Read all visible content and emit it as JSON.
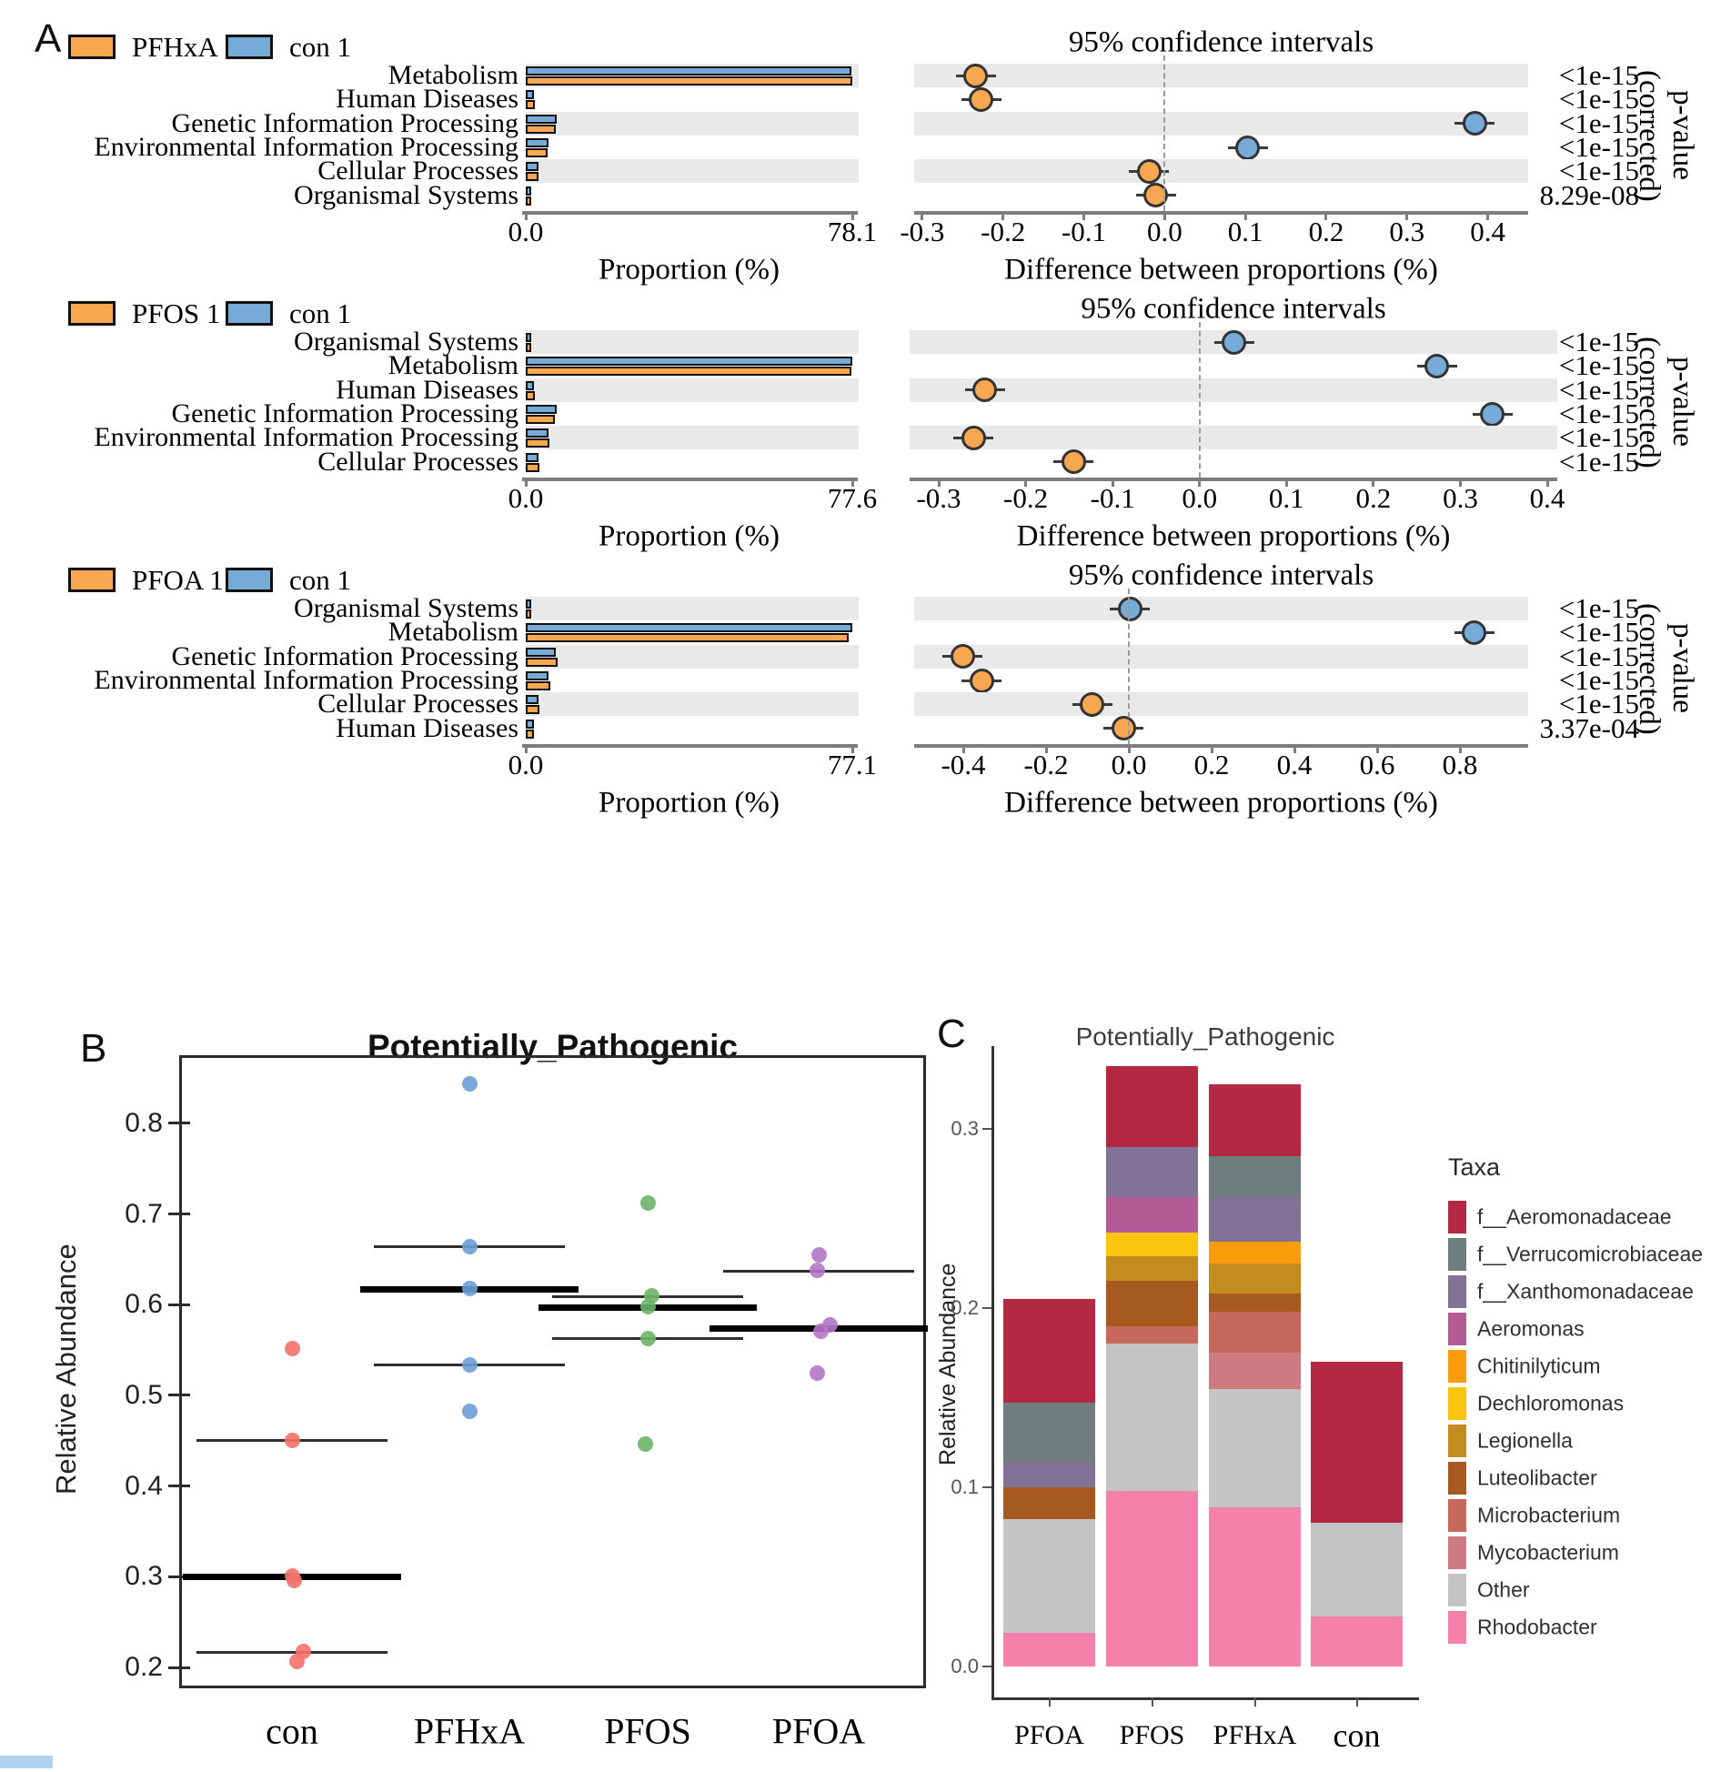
{
  "panel_labels": {
    "a": "A",
    "b": "B",
    "c": "C"
  },
  "stamp_colors": {
    "group1_fill": "#F9A750",
    "group2_fill": "#76AAD7",
    "band": "#E9E9E9",
    "axis": "#7d7d7d",
    "marker_border": "#333333"
  },
  "chart_data": [
    {
      "type": "stamp_extended_error_bar",
      "comparison": "PFHxA 1 vs con 1",
      "legend": {
        "group1": "PFHxA 1",
        "group2": "con 1"
      },
      "ci_title": "95% confidence intervals",
      "prop_xlabel": "Proportion (%)",
      "diff_xlabel": "Difference between proportions (%)",
      "right_ylabel": "p-value (corrected)",
      "prop_axis": {
        "max": 78.1,
        "tick_labels": [
          "0.0",
          "78.1"
        ]
      },
      "diff_axis": {
        "min": -0.31,
        "max": 0.45,
        "ticks": [
          -0.3,
          -0.2,
          -0.1,
          0.0,
          0.1,
          0.2,
          0.3,
          0.4
        ]
      },
      "rows": [
        {
          "category": "Metabolism",
          "group1_prop": 78.1,
          "group2_prop": 77.87,
          "diff": -0.234,
          "enriched": "group1",
          "p_value": "<1e-15"
        },
        {
          "category": "Human Diseases",
          "group1_prop": 2.08,
          "group2_prop": 1.85,
          "diff": -0.227,
          "enriched": "group1",
          "p_value": "<1e-15"
        },
        {
          "category": "Genetic Information Processing",
          "group1_prop": 7.11,
          "group2_prop": 7.49,
          "diff": 0.384,
          "enriched": "group2",
          "p_value": "<1e-15"
        },
        {
          "category": "Environmental Information Processing",
          "group1_prop": 5.32,
          "group2_prop": 5.42,
          "diff": 0.103,
          "enriched": "group2",
          "p_value": "<1e-15"
        },
        {
          "category": "Cellular Processes",
          "group1_prop": 3.09,
          "group2_prop": 3.07,
          "diff": -0.019,
          "enriched": "group1",
          "p_value": "<1e-15"
        },
        {
          "category": "Organismal Systems",
          "group1_prop": 1.29,
          "group2_prop": 1.28,
          "diff": -0.011,
          "enriched": "group1",
          "p_value": "8.29e-08"
        }
      ]
    },
    {
      "type": "stamp_extended_error_bar",
      "comparison": "PFOS 1 vs con 1",
      "legend": {
        "group1": "PFOS 1",
        "group2": "con 1"
      },
      "ci_title": "95% confidence intervals",
      "prop_xlabel": "Proportion (%)",
      "diff_xlabel": "Difference between proportions (%)",
      "right_ylabel": "p-value (corrected)",
      "prop_axis": {
        "max": 77.6,
        "tick_labels": [
          "0.0",
          "77.6"
        ]
      },
      "diff_axis": {
        "min": -0.3335,
        "max": 0.4115,
        "ticks": [
          -0.3,
          -0.2,
          -0.1,
          0.0,
          0.1,
          0.2,
          0.3,
          0.4
        ]
      },
      "rows": [
        {
          "category": "Organismal Systems",
          "group1_prop": 1.27,
          "group2_prop": 1.31,
          "diff": 0.04,
          "enriched": "group2",
          "p_value": "<1e-15"
        },
        {
          "category": "Metabolism",
          "group1_prop": 77.33,
          "group2_prop": 77.6,
          "diff": 0.273,
          "enriched": "group2",
          "p_value": "<1e-15"
        },
        {
          "category": "Human Diseases",
          "group1_prop": 2.2,
          "group2_prop": 1.95,
          "diff": -0.247,
          "enriched": "group1",
          "p_value": "<1e-15"
        },
        {
          "category": "Genetic Information Processing",
          "group1_prop": 6.96,
          "group2_prop": 7.3,
          "diff": 0.337,
          "enriched": "group2",
          "p_value": "<1e-15"
        },
        {
          "category": "Environmental Information Processing",
          "group1_prop": 5.56,
          "group2_prop": 5.3,
          "diff": -0.26,
          "enriched": "group1",
          "p_value": "<1e-15"
        },
        {
          "category": "Cellular Processes",
          "group1_prop": 3.2,
          "group2_prop": 3.06,
          "diff": -0.145,
          "enriched": "group1",
          "p_value": "<1e-15"
        }
      ]
    },
    {
      "type": "stamp_extended_error_bar",
      "comparison": "PFOA 1 vs con 1",
      "legend": {
        "group1": "PFOA 1",
        "group2": "con 1"
      },
      "ci_title": "95% confidence intervals",
      "prop_xlabel": "Proportion (%)",
      "diff_xlabel": "Difference between proportions (%)",
      "right_ylabel": "p-value (corrected)",
      "prop_axis": {
        "max": 77.1,
        "tick_labels": [
          "0.0",
          "77.1"
        ]
      },
      "diff_axis": {
        "min": -0.5187,
        "max": 0.9648,
        "ticks": [
          -0.4,
          -0.2,
          0.0,
          0.2,
          0.4,
          0.6,
          0.8
        ]
      },
      "rows": [
        {
          "category": "Organismal Systems",
          "group1_prop": 1.3,
          "group2_prop": 1.3,
          "diff": 0.003,
          "enriched": "group2",
          "p_value": "<1e-15"
        },
        {
          "category": "Metabolism",
          "group1_prop": 76.27,
          "group2_prop": 77.1,
          "diff": 0.835,
          "enriched": "group2",
          "p_value": "<1e-15"
        },
        {
          "category": "Genetic Information Processing",
          "group1_prop": 7.5,
          "group2_prop": 7.1,
          "diff": -0.402,
          "enriched": "group1",
          "p_value": "<1e-15"
        },
        {
          "category": "Environmental Information Processing",
          "group1_prop": 5.75,
          "group2_prop": 5.4,
          "diff": -0.355,
          "enriched": "group1",
          "p_value": "<1e-15"
        },
        {
          "category": "Cellular Processes",
          "group1_prop": 3.19,
          "group2_prop": 3.1,
          "diff": -0.088,
          "enriched": "group1",
          "p_value": "<1e-15"
        },
        {
          "category": "Human Diseases",
          "group1_prop": 2.0,
          "group2_prop": 1.99,
          "diff": -0.013,
          "enriched": "group1",
          "p_value": "3.37e-04"
        }
      ]
    },
    {
      "type": "scatter",
      "title": "Potentially_Pathogenic",
      "ylabel": "Relative Abundance",
      "ylim": [
        0.17,
        0.87
      ],
      "yticks": [
        0.2,
        0.3,
        0.4,
        0.5,
        0.6,
        0.7,
        0.8
      ],
      "groups": [
        {
          "name": "con",
          "color": "#F4726C",
          "points": [
            0.552,
            0.45,
            0.301,
            0.296,
            0.218,
            0.207
          ],
          "jitter": [
            0,
            0,
            0,
            2,
            12,
            5
          ],
          "mean": 0.3,
          "upper": 0.45,
          "lower": 0.217
        },
        {
          "name": "PFHxA",
          "color": "#6D9FD6",
          "points": [
            0.843,
            0.664,
            0.618,
            0.534,
            0.482
          ],
          "jitter": [
            0,
            0,
            0,
            0,
            0
          ],
          "mean": 0.617,
          "upper": 0.664,
          "lower": 0.534
        },
        {
          "name": "PFOS",
          "color": "#6CB468",
          "points": [
            0.712,
            0.61,
            0.598,
            0.563,
            0.446
          ],
          "jitter": [
            0,
            4,
            0,
            0,
            -3
          ],
          "mean": 0.597,
          "upper": 0.609,
          "lower": 0.563
        },
        {
          "name": "PFOA",
          "color": "#B475C5",
          "points": [
            0.655,
            0.638,
            0.578,
            0.571,
            0.524
          ],
          "jitter": [
            0,
            -2,
            12,
            2,
            -2
          ],
          "mean": 0.574,
          "upper": 0.637,
          "lower": null
        }
      ]
    },
    {
      "type": "bar",
      "subtype": "stacked",
      "title": "Potentially_Pathogenic",
      "ylabel": "Relative Abundance",
      "legend_title": "Taxa",
      "yticks": [
        0.0,
        0.1,
        0.2,
        0.3
      ],
      "ylim": [
        0,
        0.345
      ],
      "categories": [
        "PFOA",
        "PFOS",
        "PFHxA",
        "con"
      ],
      "taxa": [
        {
          "name": "f__Aeromonadaceae",
          "color": "#B52841"
        },
        {
          "name": "f__Verrucomicrobiaceae",
          "color": "#6F7D7F"
        },
        {
          "name": "f__Xanthomonadaceae",
          "color": "#827295"
        },
        {
          "name": "Aeromonas",
          "color": "#B25B94"
        },
        {
          "name": "Chitinilyticum",
          "color": "#FA9C0B"
        },
        {
          "name": "Dechloromonas",
          "color": "#FBC40F"
        },
        {
          "name": "Legionella",
          "color": "#C28D1E"
        },
        {
          "name": "Luteolibacter",
          "color": "#A65A20"
        },
        {
          "name": "Microbacterium",
          "color": "#C7685C"
        },
        {
          "name": "Mycobacterium",
          "color": "#CD7B80"
        },
        {
          "name": "Other",
          "color": "#C4C4C4"
        },
        {
          "name": "Rhodobacter",
          "color": "#F580A9"
        }
      ],
      "stacks": {
        "PFOA": [
          {
            "taxon": "Rhodobacter",
            "value": 0.019
          },
          {
            "taxon": "Other",
            "value": 0.063
          },
          {
            "taxon": "Luteolibacter",
            "value": 0.018
          },
          {
            "taxon": "f__Xanthomonadaceae",
            "value": 0.014
          },
          {
            "taxon": "f__Verrucomicrobiaceae",
            "value": 0.033
          },
          {
            "taxon": "f__Aeromonadaceae",
            "value": 0.058
          }
        ],
        "PFOS": [
          {
            "taxon": "Rhodobacter",
            "value": 0.098
          },
          {
            "taxon": "Other",
            "value": 0.082
          },
          {
            "taxon": "Microbacterium",
            "value": 0.01
          },
          {
            "taxon": "Luteolibacter",
            "value": 0.025
          },
          {
            "taxon": "Legionella",
            "value": 0.014
          },
          {
            "taxon": "Dechloromonas",
            "value": 0.013
          },
          {
            "taxon": "Aeromonas",
            "value": 0.02
          },
          {
            "taxon": "f__Xanthomonadaceae",
            "value": 0.028
          },
          {
            "taxon": "f__Aeromonadaceae",
            "value": 0.045
          }
        ],
        "PFHxA": [
          {
            "taxon": "Rhodobacter",
            "value": 0.089
          },
          {
            "taxon": "Other",
            "value": 0.066
          },
          {
            "taxon": "Mycobacterium",
            "value": 0.02
          },
          {
            "taxon": "Microbacterium",
            "value": 0.023
          },
          {
            "taxon": "Luteolibacter",
            "value": 0.01
          },
          {
            "taxon": "Legionella",
            "value": 0.017
          },
          {
            "taxon": "Chitinilyticum",
            "value": 0.012
          },
          {
            "taxon": "f__Xanthomonadaceae",
            "value": 0.025
          },
          {
            "taxon": "f__Verrucomicrobiaceae",
            "value": 0.023
          },
          {
            "taxon": "f__Aeromonadaceae",
            "value": 0.04
          }
        ],
        "con": [
          {
            "taxon": "Rhodobacter",
            "value": 0.028
          },
          {
            "taxon": "Other",
            "value": 0.052
          },
          {
            "taxon": "f__Aeromonadaceae",
            "value": 0.09
          }
        ]
      }
    }
  ]
}
